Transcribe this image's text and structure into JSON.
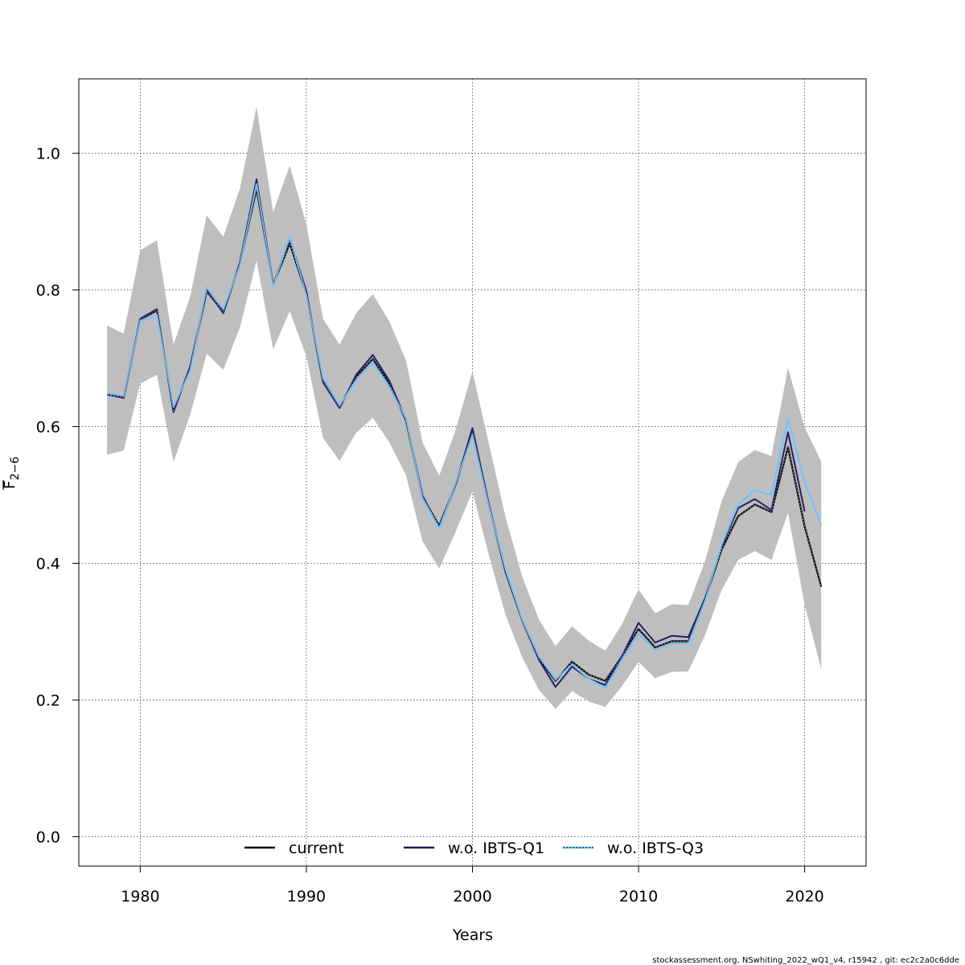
{
  "chart_data": {
    "type": "line",
    "title": "",
    "xlabel": "Years",
    "ylabel_main": "F",
    "ylabel_sub": "2−6",
    "xlim": [
      1976.3,
      2023.7
    ],
    "ylim": [
      -0.043,
      1.109
    ],
    "x_ticks": [
      1980,
      1990,
      2000,
      2010,
      2020
    ],
    "y_ticks": [
      0.0,
      0.2,
      0.4,
      0.6,
      0.8,
      1.0
    ],
    "y_tick_labels": [
      "0.0",
      "0.2",
      "0.4",
      "0.6",
      "0.8",
      "1.0"
    ],
    "grid": true,
    "legend_position": "bottom",
    "band": {
      "color": "#bebebe",
      "x": [
        1978,
        1979,
        1980,
        1981,
        1982,
        1983,
        1984,
        1985,
        1986,
        1987,
        1988,
        1989,
        1990,
        1991,
        1992,
        1993,
        1994,
        1995,
        1996,
        1997,
        1998,
        1999,
        2000,
        2001,
        2002,
        2003,
        2004,
        2005,
        2006,
        2007,
        2008,
        2009,
        2010,
        2011,
        2012,
        2013,
        2014,
        2015,
        2016,
        2017,
        2018,
        2019,
        2020,
        2021
      ],
      "upper": [
        0.748,
        0.736,
        0.858,
        0.873,
        0.72,
        0.79,
        0.909,
        0.878,
        0.948,
        1.068,
        0.914,
        0.982,
        0.896,
        0.758,
        0.72,
        0.766,
        0.794,
        0.754,
        0.697,
        0.577,
        0.528,
        0.596,
        0.681,
        0.574,
        0.467,
        0.38,
        0.318,
        0.279,
        0.308,
        0.287,
        0.272,
        0.311,
        0.362,
        0.327,
        0.34,
        0.339,
        0.403,
        0.491,
        0.548,
        0.566,
        0.557,
        0.686,
        0.599,
        0.549
      ],
      "lower": [
        0.559,
        0.565,
        0.663,
        0.676,
        0.548,
        0.617,
        0.707,
        0.683,
        0.745,
        0.843,
        0.713,
        0.769,
        0.703,
        0.584,
        0.55,
        0.591,
        0.613,
        0.577,
        0.529,
        0.432,
        0.392,
        0.447,
        0.505,
        0.411,
        0.324,
        0.262,
        0.215,
        0.187,
        0.213,
        0.198,
        0.19,
        0.22,
        0.256,
        0.232,
        0.241,
        0.242,
        0.295,
        0.361,
        0.405,
        0.418,
        0.405,
        0.474,
        0.339,
        0.245
      ]
    },
    "series": [
      {
        "name": "current",
        "color": "#000000",
        "x": [
          1978,
          1979,
          1980,
          1981,
          1982,
          1983,
          1984,
          1985,
          1986,
          1987,
          1988,
          1989,
          1990,
          1991,
          1992,
          1993,
          1994,
          1995,
          1996,
          1997,
          1998,
          1999,
          2000,
          2001,
          2002,
          2003,
          2004,
          2005,
          2006,
          2007,
          2008,
          2009,
          2010,
          2011,
          2012,
          2013,
          2014,
          2015,
          2016,
          2017,
          2018,
          2019,
          2020,
          2021
        ],
        "values": [
          0.647,
          0.643,
          0.757,
          0.77,
          0.624,
          0.686,
          0.798,
          0.768,
          0.838,
          0.948,
          0.808,
          0.868,
          0.794,
          0.666,
          0.629,
          0.673,
          0.699,
          0.663,
          0.609,
          0.497,
          0.455,
          0.516,
          0.592,
          0.484,
          0.387,
          0.316,
          0.261,
          0.228,
          0.256,
          0.237,
          0.228,
          0.264,
          0.304,
          0.277,
          0.286,
          0.286,
          0.347,
          0.42,
          0.469,
          0.486,
          0.475,
          0.57,
          0.454,
          0.366
        ]
      },
      {
        "name": "w.o. IBTS-Q1",
        "color": "#2b1b6e",
        "x": [
          1978,
          1979,
          1980,
          1981,
          1982,
          1983,
          1984,
          1985,
          1986,
          1987,
          1988,
          1989,
          1990,
          1991,
          1992,
          1993,
          1994,
          1995,
          1996,
          1997,
          1998,
          1999,
          2000,
          2001,
          2002,
          2003,
          2004,
          2005,
          2006,
          2007,
          2008,
          2009,
          2010,
          2011,
          2012,
          2013,
          2014,
          2015,
          2016,
          2017,
          2018,
          2019,
          2020
        ],
        "values": [
          0.647,
          0.642,
          0.758,
          0.772,
          0.621,
          0.688,
          0.8,
          0.766,
          0.84,
          0.962,
          0.808,
          0.876,
          0.798,
          0.665,
          0.627,
          0.676,
          0.705,
          0.667,
          0.61,
          0.499,
          0.452,
          0.516,
          0.598,
          0.485,
          0.388,
          0.316,
          0.259,
          0.219,
          0.249,
          0.231,
          0.222,
          0.264,
          0.313,
          0.284,
          0.294,
          0.292,
          0.349,
          0.424,
          0.481,
          0.494,
          0.478,
          0.592,
          0.476
        ]
      },
      {
        "name": "w.o. IBTS-Q3",
        "color": "#6bc4ff",
        "x": [
          1978,
          1979,
          1980,
          1981,
          1982,
          1983,
          1984,
          1985,
          1986,
          1987,
          1988,
          1989,
          1990,
          1991,
          1992,
          1993,
          1994,
          1995,
          1996,
          1997,
          1998,
          1999,
          2000,
          2001,
          2002,
          2003,
          2004,
          2005,
          2006,
          2007,
          2008,
          2009,
          2010,
          2011,
          2012,
          2013,
          2014,
          2015,
          2016,
          2017,
          2018,
          2019,
          2020,
          2021
        ],
        "values": [
          0.649,
          0.645,
          0.755,
          0.764,
          0.629,
          0.681,
          0.804,
          0.772,
          0.836,
          0.955,
          0.806,
          0.878,
          0.792,
          0.671,
          0.631,
          0.668,
          0.694,
          0.658,
          0.612,
          0.495,
          0.451,
          0.518,
          0.588,
          0.482,
          0.391,
          0.317,
          0.264,
          0.23,
          0.252,
          0.231,
          0.218,
          0.259,
          0.297,
          0.273,
          0.283,
          0.283,
          0.345,
          0.427,
          0.486,
          0.507,
          0.5,
          0.612,
          0.519,
          0.455
        ]
      }
    ]
  },
  "footer": "stockassessment.org, NSwhiting_2022_wQ1_v4, r15942 , git: ec2c2a0c6dde"
}
